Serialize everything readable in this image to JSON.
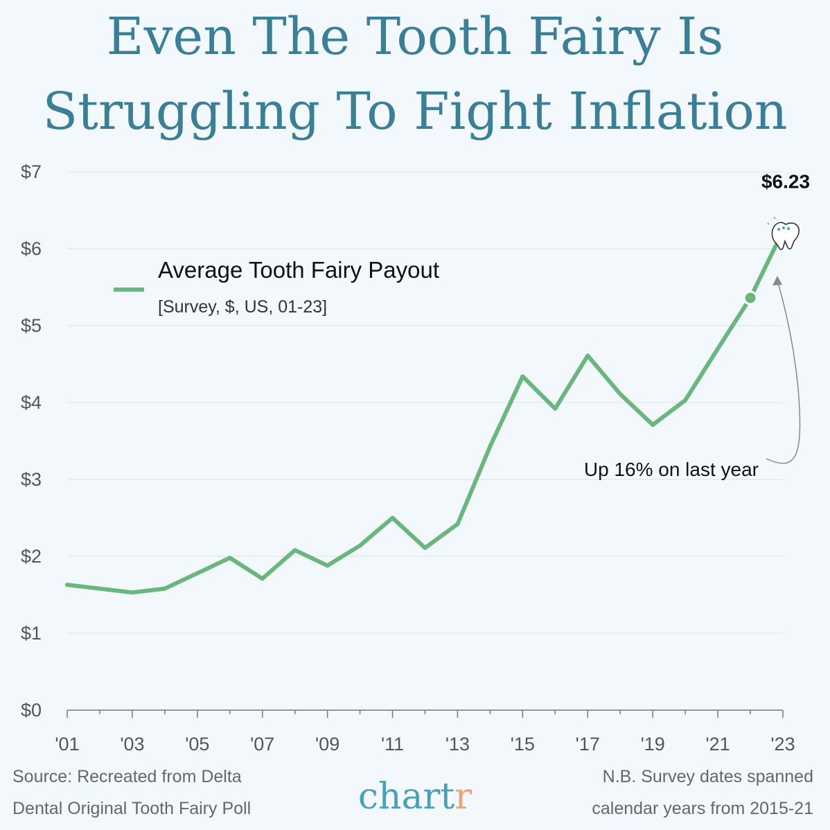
{
  "title": {
    "line1": "Even The Tooth Fairy Is",
    "line2": "Struggling To Fight Inflation"
  },
  "chart_data": {
    "type": "line",
    "x": [
      2001,
      2002,
      2003,
      2004,
      2005,
      2006,
      2007,
      2008,
      2009,
      2010,
      2011,
      2012,
      2013,
      2014,
      2015,
      2016,
      2017,
      2018,
      2019,
      2020,
      2021,
      2022,
      2023
    ],
    "series": [
      {
        "name": "Average Tooth Fairy Payout",
        "values": [
          1.63,
          1.58,
          1.53,
          1.58,
          1.78,
          1.98,
          1.71,
          2.08,
          1.88,
          2.14,
          2.5,
          2.11,
          2.42,
          3.43,
          4.34,
          3.92,
          4.61,
          4.11,
          3.71,
          4.03,
          4.7,
          5.36,
          6.23
        ],
        "color": "#6bb67f"
      }
    ],
    "legend_subtitle": "[Survey, $, US, 01-23]",
    "ylim": [
      0,
      7
    ],
    "y_ticks": [
      0,
      1,
      2,
      3,
      4,
      5,
      6,
      7
    ],
    "y_tick_labels": [
      "$0",
      "$1",
      "$2",
      "$3",
      "$4",
      "$5",
      "$6",
      "$7"
    ],
    "x_tick_labels": [
      "'01",
      "'03",
      "'05",
      "'07",
      "'09",
      "'11",
      "'13",
      "'15",
      "'17",
      "'19",
      "'21",
      "'23"
    ],
    "grid": true,
    "annotations": {
      "end_value": "$6.23",
      "change_note": "Up 16% on last year"
    }
  },
  "footer": {
    "source_line1": "Source: Recreated from Delta",
    "source_line2": "Dental Original Tooth Fairy Poll",
    "note_line1": "N.B. Survey dates spanned",
    "note_line2": "calendar years from 2015-21"
  },
  "logo": {
    "main": "chart",
    "accent": "r"
  },
  "colors": {
    "background": "#f2f8fb",
    "title": "#3a7f96",
    "line": "#6bb67f",
    "logo": "#4aa0b8",
    "logo_accent": "#e9a57a"
  }
}
